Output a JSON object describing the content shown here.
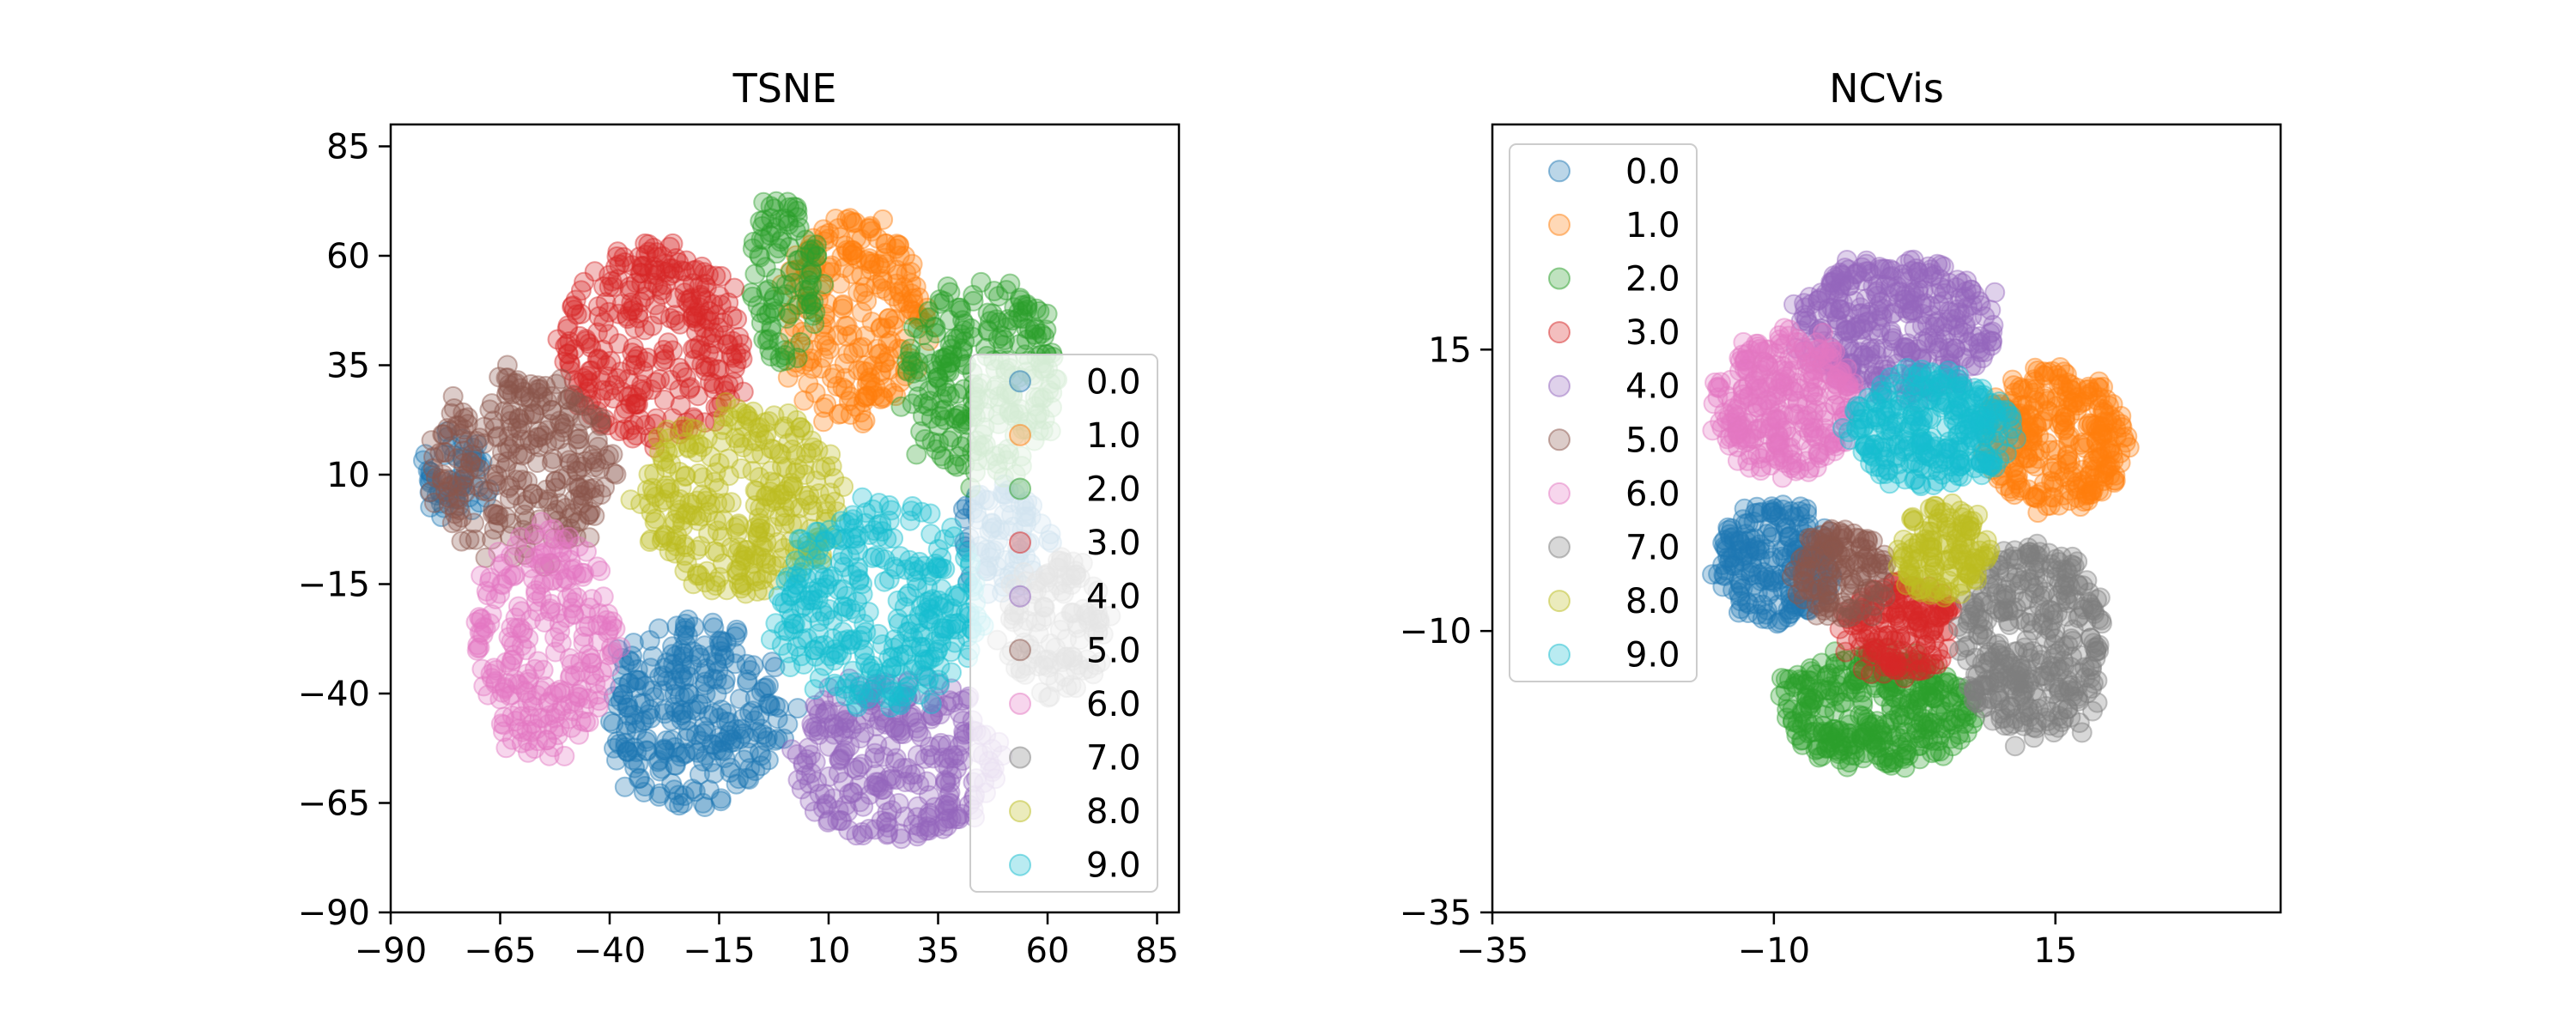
{
  "chart_data": [
    {
      "type": "scatter",
      "title": "TSNE",
      "xlim": [
        -90,
        90
      ],
      "ylim": [
        -90,
        90
      ],
      "xticks": [
        -90,
        -65,
        -40,
        -15,
        10,
        35,
        60,
        85
      ],
      "yticks": [
        -90,
        -65,
        -40,
        -15,
        10,
        35,
        60,
        85
      ],
      "xticklabels": [
        "−90",
        "−65",
        "−40",
        "−15",
        "10",
        "35",
        "60",
        "85"
      ],
      "yticklabels": [
        "−90",
        "−65",
        "−40",
        "−15",
        "10",
        "35",
        "60",
        "85"
      ],
      "grid": false,
      "legend_position": "right",
      "series": [
        {
          "name": "0.0",
          "color": "#1f77b4",
          "clusters": [
            {
              "cx": -20,
              "cy": -45,
              "rx": 20,
              "ry": 20
            },
            {
              "cx": -75,
              "cy": 10,
              "rx": 8,
              "ry": 10
            },
            {
              "cx": 50,
              "cy": -5,
              "rx": 10,
              "ry": 12
            }
          ]
        },
        {
          "name": "1.0",
          "color": "#ff7f0e",
          "clusters": [
            {
              "cx": 15,
              "cy": 45,
              "rx": 16,
              "ry": 22
            }
          ]
        },
        {
          "name": "2.0",
          "color": "#2ca02c",
          "clusters": [
            {
              "cx": 45,
              "cy": 32,
              "rx": 17,
              "ry": 22
            },
            {
              "cx": 0,
              "cy": 55,
              "rx": 8,
              "ry": 18
            }
          ]
        },
        {
          "name": "3.0",
          "color": "#d62728",
          "clusters": [
            {
              "cx": -30,
              "cy": 40,
              "rx": 20,
              "ry": 22
            }
          ]
        },
        {
          "name": "4.0",
          "color": "#9467bd",
          "clusters": [
            {
              "cx": 25,
              "cy": -55,
              "rx": 23,
              "ry": 18
            }
          ]
        },
        {
          "name": "5.0",
          "color": "#8c564b",
          "clusters": [
            {
              "cx": -60,
              "cy": 12,
              "rx": 20,
              "ry": 20
            }
          ]
        },
        {
          "name": "6.0",
          "color": "#e377c2",
          "clusters": [
            {
              "cx": -55,
              "cy": -28,
              "rx": 15,
              "ry": 25
            }
          ]
        },
        {
          "name": "7.0",
          "color": "#7f7f7f",
          "clusters": [
            {
              "cx": 62,
              "cy": -25,
              "rx": 12,
              "ry": 15
            }
          ]
        },
        {
          "name": "8.0",
          "color": "#bcbd22",
          "clusters": [
            {
              "cx": -10,
              "cy": 5,
              "rx": 22,
              "ry": 20
            }
          ]
        },
        {
          "name": "9.0",
          "color": "#17becf",
          "clusters": [
            {
              "cx": 22,
              "cy": -20,
              "rx": 22,
              "ry": 22
            }
          ]
        }
      ]
    },
    {
      "type": "scatter",
      "title": "NCVis",
      "xlim": [
        -35,
        35
      ],
      "ylim": [
        -35,
        35
      ],
      "xticks": [
        -35,
        -10,
        15
      ],
      "yticks": [
        -35,
        -10,
        15
      ],
      "xticklabels": [
        "−35",
        "−10",
        "15"
      ],
      "yticklabels": [
        "−35",
        "−10",
        "15"
      ],
      "grid": false,
      "legend_position": "upper left",
      "series": [
        {
          "name": "0.0",
          "color": "#1f77b4",
          "clusters": [
            {
              "cx": -10,
              "cy": -4,
              "rx": 5,
              "ry": 5
            }
          ]
        },
        {
          "name": "1.0",
          "color": "#ff7f0e",
          "clusters": [
            {
              "cx": 15,
              "cy": 7,
              "rx": 6,
              "ry": 6
            }
          ]
        },
        {
          "name": "2.0",
          "color": "#2ca02c",
          "clusters": [
            {
              "cx": -1,
              "cy": -17,
              "rx": 8,
              "ry": 5
            }
          ]
        },
        {
          "name": "3.0",
          "color": "#d62728",
          "clusters": [
            {
              "cx": 1,
              "cy": -10,
              "rx": 5,
              "ry": 4
            }
          ]
        },
        {
          "name": "4.0",
          "color": "#9467bd",
          "clusters": [
            {
              "cx": 1,
              "cy": 17,
              "rx": 8,
              "ry": 6
            }
          ]
        },
        {
          "name": "5.0",
          "color": "#8c564b",
          "clusters": [
            {
              "cx": -4,
              "cy": -5,
              "rx": 4,
              "ry": 4
            }
          ]
        },
        {
          "name": "6.0",
          "color": "#e377c2",
          "clusters": [
            {
              "cx": -9,
              "cy": 10,
              "rx": 6,
              "ry": 6
            }
          ]
        },
        {
          "name": "7.0",
          "color": "#7f7f7f",
          "clusters": [
            {
              "cx": 13,
              "cy": -11,
              "rx": 6,
              "ry": 8
            }
          ]
        },
        {
          "name": "8.0",
          "color": "#bcbd22",
          "clusters": [
            {
              "cx": 5,
              "cy": -3,
              "rx": 4,
              "ry": 4
            }
          ]
        },
        {
          "name": "9.0",
          "color": "#17becf",
          "clusters": [
            {
              "cx": 4,
              "cy": 8,
              "rx": 7,
              "ry": 5
            }
          ]
        }
      ]
    }
  ]
}
